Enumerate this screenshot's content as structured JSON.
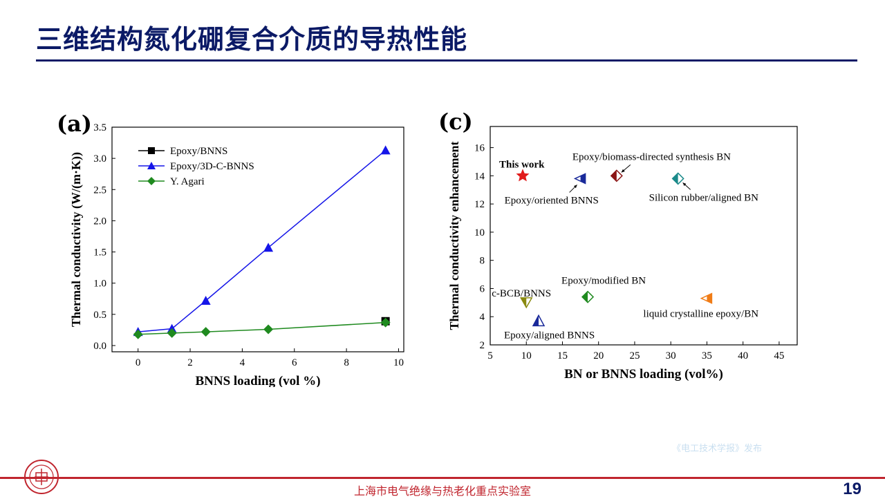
{
  "slide": {
    "title": "三维结构氮化硼复合介质的导热性能",
    "footer": "上海市电气绝缘与热老化重点实验室",
    "page_number": "19",
    "watermark": "《电工技术学报》发布",
    "colors": {
      "title": "#0b1a66",
      "footer": "#c0252e"
    }
  },
  "chart_data": [
    {
      "panel_label": "(a)",
      "type": "line",
      "xlabel": "BNNS  loading (vol %)",
      "ylabel": "Thermal conductivity (W/(m·K))",
      "xlim": [
        -1,
        10.2
      ],
      "ylim": [
        -0.1,
        3.5
      ],
      "xticks": [
        0,
        2,
        4,
        6,
        8,
        10
      ],
      "yticks": [
        0.0,
        0.5,
        1.0,
        1.5,
        2.0,
        2.5,
        3.0,
        3.5
      ],
      "legend_position": "top-left",
      "series": [
        {
          "name": "Epoxy/BNNS",
          "color": "#000000",
          "marker": "square",
          "x": [
            9.5
          ],
          "y": [
            0.39
          ]
        },
        {
          "name": "Epoxy/3D-C-BNNS",
          "color": "#1515e8",
          "marker": "triangle",
          "x": [
            0,
            1.3,
            2.6,
            5.0,
            9.5
          ],
          "y": [
            0.22,
            0.27,
            0.72,
            1.57,
            3.13
          ]
        },
        {
          "name": "Y. Agari",
          "color": "#1f8a1f",
          "marker": "diamond",
          "x": [
            0,
            1.3,
            2.6,
            5.0,
            9.5
          ],
          "y": [
            0.18,
            0.2,
            0.22,
            0.26,
            0.37
          ]
        }
      ]
    },
    {
      "panel_label": "(c)",
      "type": "scatter",
      "xlabel": "BN or BNNS loading (vol%)",
      "ylabel": "Thermal conductivity enhancement",
      "xlim": [
        5,
        47.5
      ],
      "ylim": [
        2,
        17.5
      ],
      "xticks": [
        5,
        10,
        15,
        20,
        25,
        30,
        35,
        40,
        45
      ],
      "yticks": [
        2,
        4,
        6,
        8,
        10,
        12,
        14,
        16
      ],
      "points": [
        {
          "label": "This work",
          "x": 9.5,
          "y": 14.0,
          "marker": "star",
          "color": "#e11b1b"
        },
        {
          "label": "Epoxy/oriented BNNS",
          "x": 17.5,
          "y": 13.8,
          "marker": "half-triangle-left",
          "color": "#1a2a9a"
        },
        {
          "label": "Epoxy/biomass-directed synthesis BN",
          "x": 22.5,
          "y": 14.0,
          "marker": "half-diamond",
          "color": "#8b1515"
        },
        {
          "label": "Silicon rubber/aligned BN",
          "x": 31.0,
          "y": 13.8,
          "marker": "half-diamond",
          "color": "#1a8a8a"
        },
        {
          "label": "c-BCB/BNNS",
          "x": 10.0,
          "y": 5.0,
          "marker": "half-triangle-down",
          "color": "#8a8a10"
        },
        {
          "label": "Epoxy/aligned BNNS",
          "x": 11.7,
          "y": 3.7,
          "marker": "half-triangle-up",
          "color": "#1a2a9a"
        },
        {
          "label": "Epoxy/modified BN",
          "x": 18.5,
          "y": 5.4,
          "marker": "half-diamond",
          "color": "#1f8a1f"
        },
        {
          "label": "liquid crystalline epoxy/BN",
          "x": 35.0,
          "y": 5.3,
          "marker": "half-triangle-left",
          "color": "#f07c16"
        }
      ]
    }
  ]
}
